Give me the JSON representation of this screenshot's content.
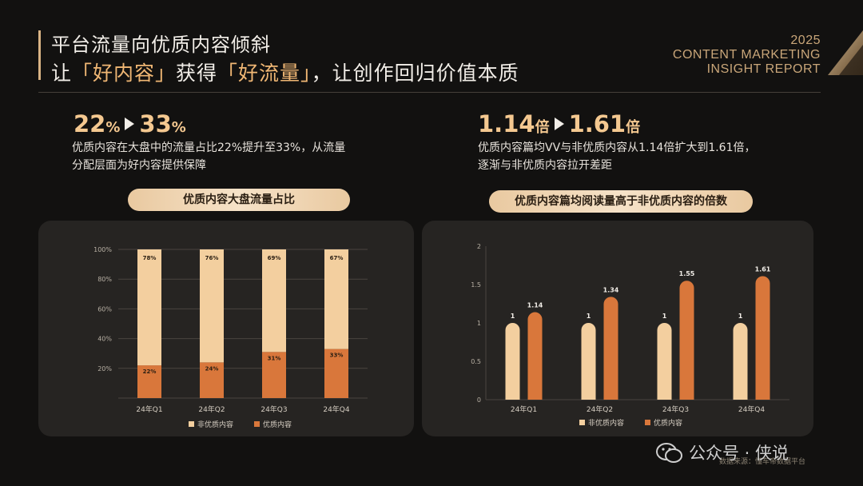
{
  "header": {
    "title_line1": "平台流量向优质内容倾斜",
    "title_line2_a": "让",
    "title_line2_b": "「好内容」",
    "title_line2_c": "获得",
    "title_line2_d": "「好流量」",
    "title_line2_e": "，让创作回归价值本质",
    "report_year": "2025",
    "report_line1": "CONTENT MARKETING",
    "report_line2": "INSIGHT REPORT"
  },
  "left_stat": {
    "from": "22",
    "from_unit": "%",
    "to": "33",
    "to_unit": "%",
    "description_line1": "优质内容在大盘中的流量占比22%提升至33%，从流量",
    "description_line2": "分配层面为好内容提供保障",
    "pill": "优质内容大盘流量占比"
  },
  "right_stat": {
    "from": "1.14",
    "from_unit": "倍",
    "to": "1.61",
    "to_unit": "倍",
    "description_line1": "优质内容篇均VV与非优质内容从1.14倍扩大到1.61倍，",
    "description_line2": "逐渐与非优质内容拉开差距",
    "pill": "优质内容篇均阅读量高于非优质内容的倍数"
  },
  "colors": {
    "light_bar": "#f3cf9f",
    "dark_bar": "#d9773b",
    "accent": "#f4c890"
  },
  "chart_data": [
    {
      "type": "bar",
      "stacked": true,
      "categories": [
        "24年Q1",
        "24年Q2",
        "24年Q3",
        "24年Q4"
      ],
      "series": [
        {
          "name": "非优质内容",
          "values": [
            78,
            76,
            69,
            67
          ],
          "labels": [
            "78%",
            "76%",
            "69%",
            "67%"
          ]
        },
        {
          "name": "优质内容",
          "values": [
            22,
            24,
            31,
            33
          ],
          "labels": [
            "22%",
            "24%",
            "31%",
            "33%"
          ]
        }
      ],
      "yticks": [
        "20%",
        "40%",
        "60%",
        "80%",
        "100%"
      ],
      "ylim": [
        0,
        100
      ],
      "legend": "bottom"
    },
    {
      "type": "bar",
      "stacked": false,
      "categories": [
        "24年Q1",
        "24年Q2",
        "24年Q3",
        "24年Q4"
      ],
      "series": [
        {
          "name": "非优质内容",
          "values": [
            1,
            1,
            1,
            1
          ],
          "labels": [
            "1",
            "1",
            "1",
            "1"
          ]
        },
        {
          "name": "优质内容",
          "values": [
            1.14,
            1.34,
            1.55,
            1.61
          ],
          "labels": [
            "1.14",
            "1.34",
            "1.55",
            "1.61"
          ]
        }
      ],
      "yticks": [
        "0",
        "0.5",
        "1",
        "1.5",
        "2"
      ],
      "ylim": [
        0,
        2
      ],
      "legend": "bottom"
    }
  ],
  "footer": {
    "source": "数据来源：懂车帝数据平台",
    "watermark": "公众号 · 侠说"
  }
}
